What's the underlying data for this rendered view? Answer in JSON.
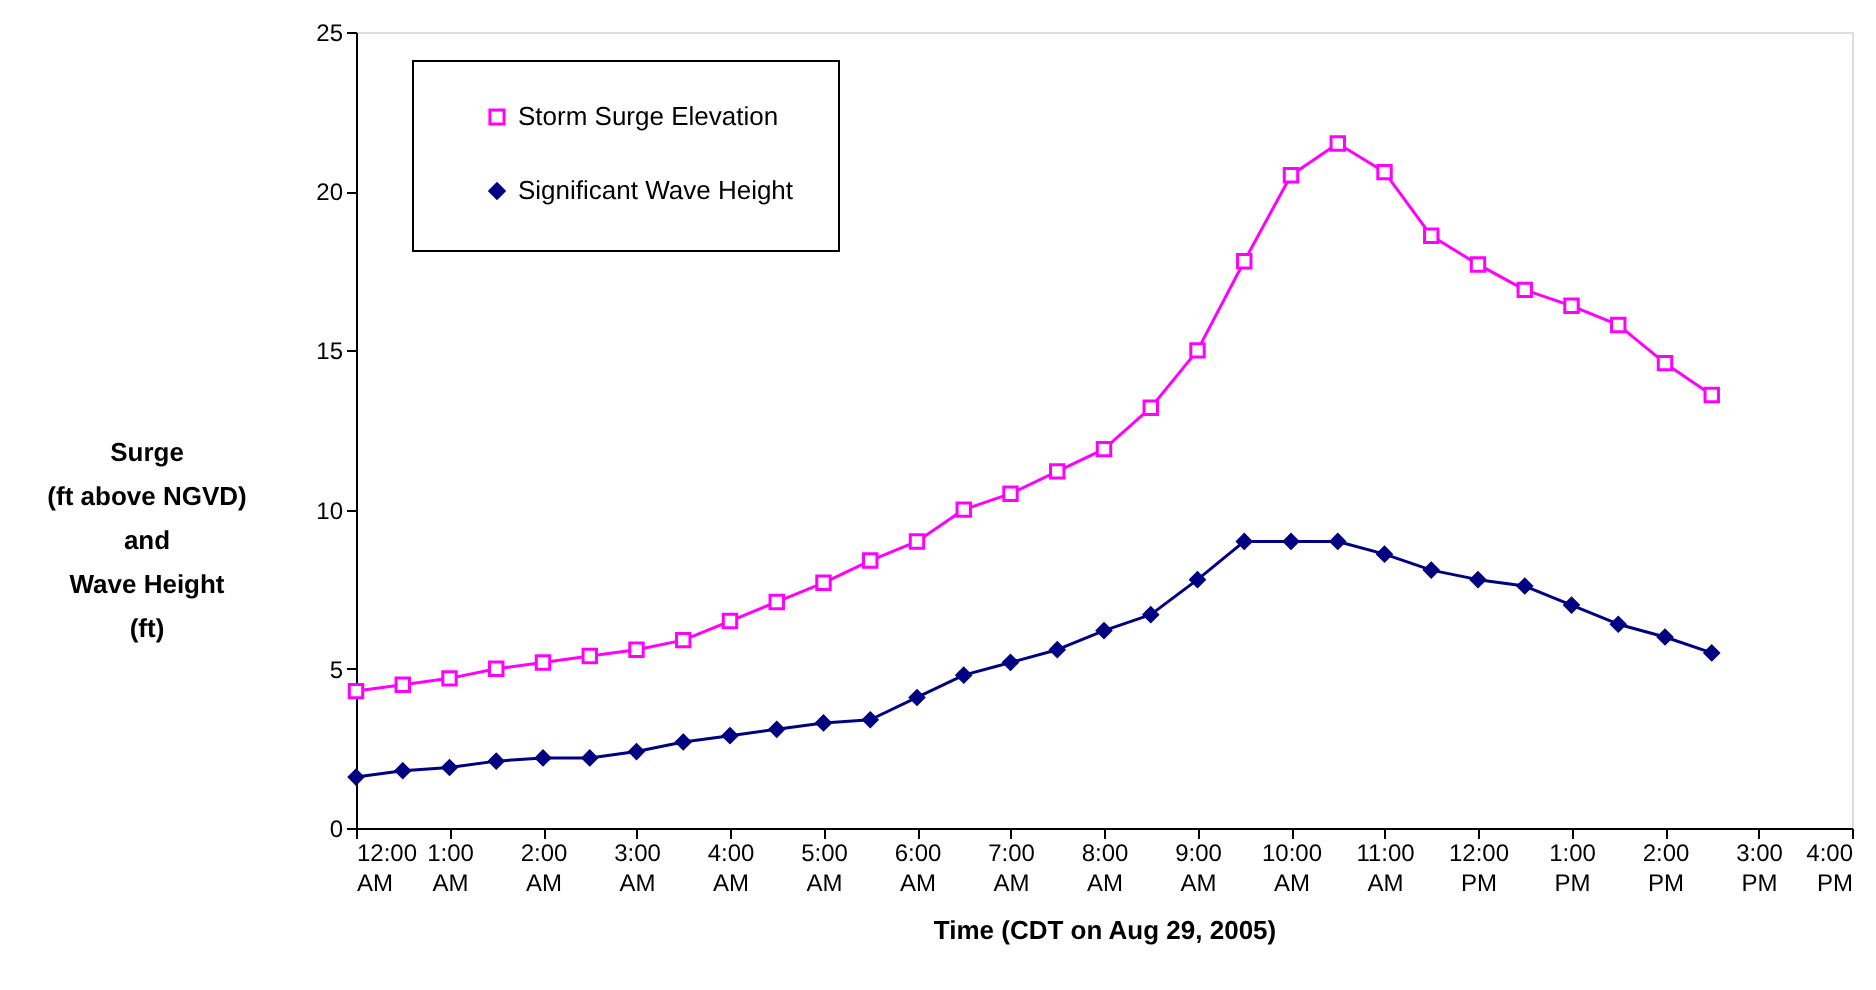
{
  "chart_data": {
    "type": "line",
    "xlabel": "Time (CDT on Aug 29, 2005)",
    "ylabel": "Surge\n(ft above NGVD)\nand\nWave Height\n(ft)",
    "x": [
      0,
      0.5,
      1,
      1.5,
      2,
      2.5,
      3,
      3.5,
      4,
      4.5,
      5,
      5.5,
      6,
      6.5,
      7,
      7.5,
      8,
      8.5,
      9,
      9.5,
      10,
      10.5,
      11,
      11.5,
      12,
      12.5,
      13,
      13.5,
      14,
      14.5
    ],
    "series": [
      {
        "name": "Storm Surge Elevation",
        "color": "#ff00ff",
        "marker": "square",
        "values": [
          4.3,
          4.5,
          4.7,
          5.0,
          5.2,
          5.4,
          5.6,
          5.9,
          6.5,
          7.1,
          7.7,
          8.4,
          9.0,
          10.0,
          10.5,
          11.2,
          11.9,
          13.2,
          15.0,
          17.8,
          20.5,
          21.5,
          20.6,
          18.6,
          17.7,
          16.9,
          16.4,
          15.8,
          14.6,
          13.6
        ]
      },
      {
        "name": "Significant Wave Height",
        "color": "#000080",
        "marker": "diamond",
        "values": [
          1.6,
          1.8,
          1.9,
          2.1,
          2.2,
          2.2,
          2.4,
          2.7,
          2.9,
          3.1,
          3.3,
          3.4,
          4.1,
          4.8,
          5.2,
          5.6,
          6.2,
          6.7,
          7.8,
          9.0,
          9.0,
          9.0,
          8.6,
          8.1,
          7.8,
          7.6,
          7.0,
          6.4,
          6.0,
          5.5
        ]
      }
    ],
    "xlim": [
      0,
      16
    ],
    "xticks": [
      {
        "value": 0,
        "label": "12:00 AM"
      },
      {
        "value": 1,
        "label": "1:00 AM"
      },
      {
        "value": 2,
        "label": "2:00 AM"
      },
      {
        "value": 3,
        "label": "3:00 AM"
      },
      {
        "value": 4,
        "label": "4:00 AM"
      },
      {
        "value": 5,
        "label": "5:00 AM"
      },
      {
        "value": 6,
        "label": "6:00 AM"
      },
      {
        "value": 7,
        "label": "7:00 AM"
      },
      {
        "value": 8,
        "label": "8:00 AM"
      },
      {
        "value": 9,
        "label": "9:00 AM"
      },
      {
        "value": 10,
        "label": "10:00 AM"
      },
      {
        "value": 11,
        "label": "11:00 AM"
      },
      {
        "value": 12,
        "label": "12:00 PM"
      },
      {
        "value": 13,
        "label": "1:00 PM"
      },
      {
        "value": 14,
        "label": "2:00 PM"
      },
      {
        "value": 15,
        "label": "3:00 PM"
      },
      {
        "value": 16,
        "label": "4:00 PM"
      }
    ],
    "ylim": [
      0,
      25
    ],
    "yticks": [
      0,
      5,
      10,
      15,
      20,
      25
    ],
    "grid": false,
    "legend": "top left",
    "line_style": "solid"
  }
}
